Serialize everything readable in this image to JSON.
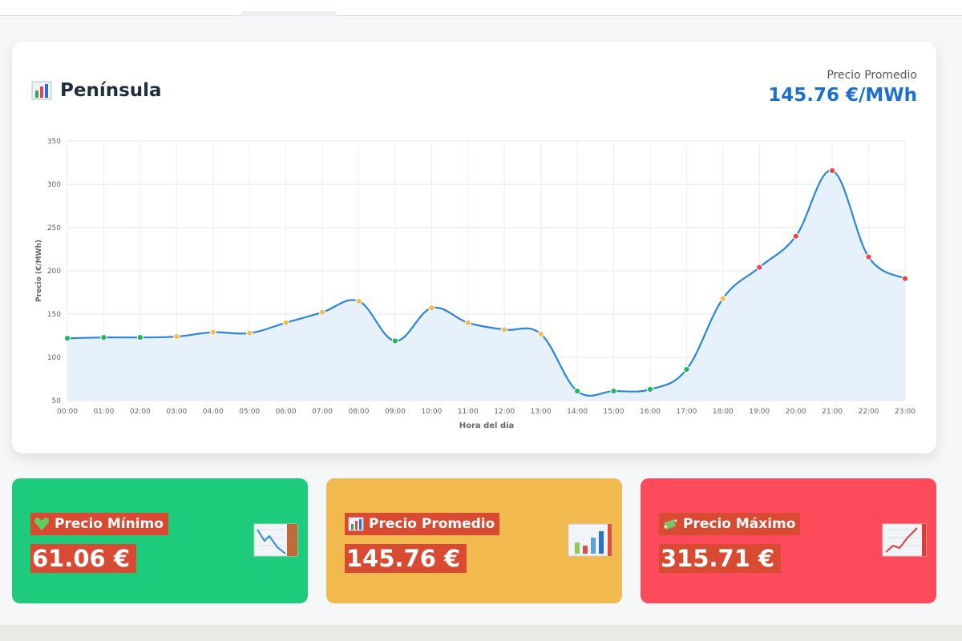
{
  "region": {
    "title": "Península",
    "title_icon": "bar-chart-icon"
  },
  "average": {
    "label": "Precio Promedio",
    "value": "145.76 €/MWh"
  },
  "chart_data": {
    "type": "line",
    "title": "",
    "xlabel": "Hora del día",
    "ylabel": "Precio (€/MWh)",
    "ylim": [
      50,
      350
    ],
    "yticks": [
      50,
      100,
      150,
      200,
      250,
      300,
      350
    ],
    "grid": true,
    "fill": true,
    "categories": [
      "00:00",
      "01:00",
      "02:00",
      "03:00",
      "04:00",
      "05:00",
      "06:00",
      "07:00",
      "08:00",
      "09:00",
      "10:00",
      "11:00",
      "12:00",
      "13:00",
      "14:00",
      "15:00",
      "16:00",
      "17:00",
      "18:00",
      "19:00",
      "20:00",
      "21:00",
      "22:00",
      "23:00"
    ],
    "values": [
      122,
      123,
      123,
      124,
      129,
      128,
      140,
      152,
      165,
      119,
      157,
      140,
      132,
      127,
      61,
      61,
      63,
      86,
      168,
      204,
      240,
      315.71,
      216,
      191
    ],
    "point_levels": [
      "low",
      "low",
      "low",
      "mid",
      "mid",
      "mid",
      "mid",
      "mid",
      "mid",
      "low",
      "mid",
      "mid",
      "mid",
      "mid",
      "low",
      "low",
      "low",
      "low",
      "mid",
      "high",
      "high",
      "high",
      "high",
      "high"
    ],
    "colors": {
      "line": "#2b86d9",
      "fill": "#e3f0fc",
      "low": "#1fb85f",
      "mid": "#f2be4e",
      "high": "#e8454d"
    }
  },
  "stats": [
    {
      "label": "Precio Mínimo",
      "value": "61.06 €",
      "label_icon": "green-heart-icon",
      "side_icon": "chart-decreasing-icon",
      "color": "#1dcb7a"
    },
    {
      "label": "Precio Promedio",
      "value": "145.76 €",
      "label_icon": "bar-chart-icon",
      "side_icon": "bar-chart-icon",
      "color": "#f2b94f"
    },
    {
      "label": "Precio Máximo",
      "value": "315.71 €",
      "label_icon": "money-with-wings-icon",
      "side_icon": "chart-increasing-icon",
      "color": "#fd4b5b"
    }
  ]
}
